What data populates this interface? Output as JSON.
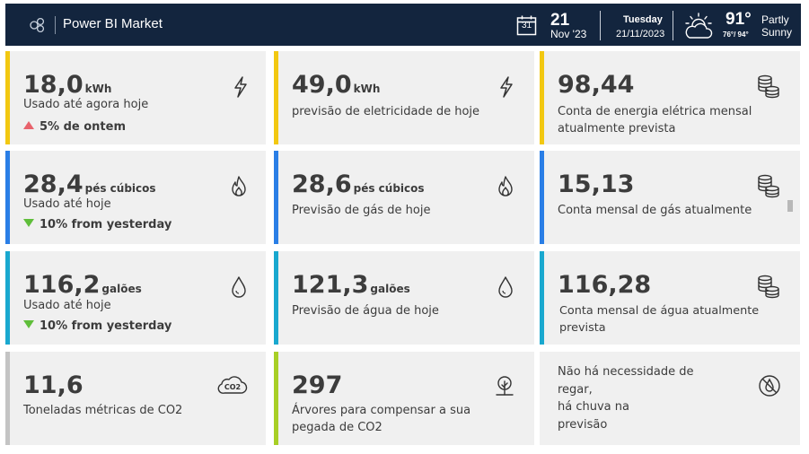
{
  "header": {
    "brand": "Power BI Market",
    "calendar_day": "31",
    "date_day": "21",
    "date_month": "Nov '23",
    "weekday": "Tuesday",
    "full_date": "21/11/2023",
    "temperature": "91°",
    "temp_range": "76°/ 94°",
    "condition_line1": "Partly",
    "condition_line2": "Sunny"
  },
  "colors": {
    "yellow": "#f2c811",
    "blue": "#2a7ee6",
    "cyan": "#19a8cf",
    "gray": "#c4c4c4",
    "green": "#a8cf26",
    "up": "#e8636c",
    "down": "#5fbe3a",
    "header_bg": "#13253e"
  },
  "cards": {
    "elec_used": {
      "value": "18,0",
      "unit": "kWh",
      "label": "Usado até agora hoje",
      "trend": "5% de ontem",
      "icon": "lightning-icon"
    },
    "elec_forecast": {
      "value": "49,0",
      "unit": "kWh",
      "label": "previsão de eletricidade de hoje",
      "icon": "lightning-icon"
    },
    "elec_bill": {
      "value": "98,44",
      "label_line1": "Conta de energia elétrica mensal",
      "label_line2": "atualmente prevista",
      "icon": "coins-icon"
    },
    "gas_used": {
      "value": "28,4",
      "unit": "pés cúbicos",
      "label": "Usado até hoje",
      "trend": "10% from yesterday",
      "icon": "flame-icon"
    },
    "gas_forecast": {
      "value": "28,6",
      "unit": "pés cúbicos",
      "label": "Previsão de gás de hoje",
      "icon": "flame-icon"
    },
    "gas_bill": {
      "value": "15,13",
      "label": "Conta mensal de gás atualmente",
      "icon": "coins-icon"
    },
    "water_used": {
      "value": "116,2",
      "unit": "galões",
      "label": "Usado até hoje",
      "trend": "10% from yesterday",
      "icon": "water-drop-icon"
    },
    "water_forecast": {
      "value": "121,3",
      "unit": "galões",
      "label": "Previsão de água de hoje",
      "icon": "water-drop-icon"
    },
    "water_bill": {
      "value": "116,28",
      "label": "Conta mensal de água atualmente prevista",
      "icon": "coins-icon"
    },
    "co2": {
      "value": "11,6",
      "label": "Toneladas métricas de CO2",
      "icon": "co2-cloud-icon",
      "icon_text": "CO2"
    },
    "trees": {
      "value": "297",
      "label_line1": "Árvores para compensar a sua",
      "label_line2": "pegada de CO2",
      "icon": "tree-icon"
    },
    "irrigation": {
      "line1": "Não há necessidade de",
      "line2": "regar,",
      "line3": "há chuva na",
      "line4": "previsão",
      "icon": "no-water-icon"
    }
  }
}
